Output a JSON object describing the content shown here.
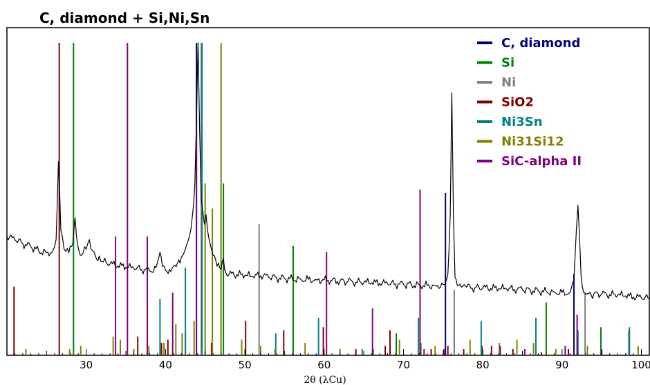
{
  "chart_data": {
    "type": "line",
    "title": "C, diamond + Si,Ni,Sn",
    "xlabel": "2θ (λCu)",
    "ylabel": "",
    "xlim": [
      20,
      101
    ],
    "ylim": [
      0,
      100
    ],
    "xticks": [
      30,
      40,
      50,
      60,
      70,
      80,
      90,
      100
    ],
    "grid": false,
    "legend_position": "top-right",
    "pattern": {
      "name": "",
      "color": "#000000",
      "x": [
        20.0,
        21.0,
        22.0,
        23.0,
        24.0,
        25.0,
        25.8,
        26.2,
        26.5,
        26.8,
        27.2,
        27.8,
        28.3,
        28.6,
        28.9,
        29.4,
        30.0,
        30.4,
        30.8,
        31.3,
        32.0,
        33.0,
        34.0,
        35.0,
        36.0,
        37.0,
        38.0,
        38.8,
        39.3,
        39.6,
        40.0,
        40.5,
        41.0,
        41.5,
        42.0,
        42.5,
        43.0,
        43.4,
        43.7,
        43.9,
        44.1,
        44.3,
        44.5,
        44.7,
        44.9,
        45.1,
        45.3,
        45.6,
        46.0,
        46.5,
        47.0,
        47.3,
        47.6,
        48.0,
        49.0,
        50.0,
        51.0,
        52.0,
        53.0,
        54.0,
        55.0,
        56.0,
        57.0,
        58.0,
        59.0,
        60.0,
        61.0,
        62.0,
        63.0,
        64.0,
        65.0,
        66.0,
        67.0,
        68.0,
        69.0,
        70.0,
        71.0,
        72.0,
        73.0,
        74.0,
        75.0,
        75.6,
        75.9,
        76.1,
        76.3,
        76.5,
        76.8,
        77.3,
        78.0,
        79.0,
        80.0,
        81.0,
        82.0,
        83.0,
        84.0,
        85.0,
        86.0,
        87.0,
        88.0,
        89.0,
        90.0,
        91.0,
        91.5,
        91.8,
        92.0,
        92.2,
        92.4,
        92.7,
        93.2,
        94.0,
        95.0,
        96.0,
        97.0,
        98.0,
        99.0,
        100.0,
        101.0
      ],
      "y": [
        38.0,
        37.0,
        35.8,
        34.8,
        33.5,
        32.8,
        33.5,
        37.0,
        62.0,
        40.0,
        34.0,
        32.8,
        35.5,
        44.0,
        35.5,
        32.0,
        34.0,
        37.0,
        33.5,
        30.8,
        30.0,
        29.2,
        28.6,
        28.2,
        27.8,
        27.5,
        27.0,
        28.0,
        33.0,
        28.5,
        27.2,
        27.5,
        28.5,
        29.5,
        31.5,
        34.0,
        38.0,
        45.0,
        55.0,
        75.0,
        100.0,
        72.0,
        50.0,
        46.0,
        42.0,
        45.0,
        40.0,
        36.0,
        32.0,
        28.5,
        27.5,
        31.0,
        26.5,
        25.8,
        25.8,
        25.5,
        25.2,
        25.5,
        25.0,
        24.8,
        24.6,
        24.5,
        24.4,
        24.3,
        24.2,
        24.2,
        24.0,
        23.8,
        23.6,
        23.4,
        23.2,
        23.2,
        23.0,
        22.9,
        22.8,
        22.7,
        22.6,
        22.5,
        22.4,
        22.3,
        22.6,
        26.0,
        45.0,
        84.0,
        45.0,
        25.0,
        22.3,
        21.8,
        21.8,
        21.6,
        21.5,
        21.4,
        21.3,
        21.2,
        21.1,
        21.0,
        20.8,
        20.6,
        20.4,
        20.3,
        20.1,
        20.0,
        24.0,
        40.0,
        48.0,
        38.0,
        25.0,
        20.2,
        19.8,
        19.6,
        19.5,
        19.4,
        19.2,
        19.0,
        18.6,
        18.4,
        18.2
      ]
    },
    "phases": [
      {
        "name": "C, diamond",
        "color": "#000080",
        "lines": [
          [
            43.9,
            100
          ],
          [
            75.3,
            52
          ],
          [
            91.5,
            26
          ]
        ]
      },
      {
        "name": "Si",
        "color": "#008000",
        "lines": [
          [
            28.4,
            100
          ],
          [
            47.3,
            55
          ],
          [
            56.1,
            35
          ],
          [
            69.1,
            7
          ],
          [
            76.4,
            11
          ],
          [
            88.0,
            17
          ],
          [
            94.9,
            9
          ]
        ]
      },
      {
        "name": "Ni",
        "color": "#808080",
        "lines": [
          [
            44.5,
            100
          ],
          [
            51.8,
            42
          ],
          [
            76.4,
            21
          ],
          [
            92.9,
            20
          ],
          [
            98.4,
            8
          ]
        ]
      },
      {
        "name": "SiO2",
        "color": "#800000",
        "lines": [
          [
            20.9,
            22
          ],
          [
            26.6,
            100
          ],
          [
            36.5,
            6
          ],
          [
            39.5,
            4
          ],
          [
            40.3,
            5
          ],
          [
            42.5,
            7
          ],
          [
            45.8,
            4
          ],
          [
            50.1,
            11
          ],
          [
            54.9,
            8
          ],
          [
            59.9,
            9
          ],
          [
            64.0,
            2
          ],
          [
            67.7,
            3
          ],
          [
            68.3,
            8
          ],
          [
            73.5,
            2
          ],
          [
            75.6,
            3
          ],
          [
            77.6,
            2
          ],
          [
            79.9,
            3
          ],
          [
            81.1,
            3
          ],
          [
            83.8,
            2
          ],
          [
            87.4,
            1
          ],
          [
            90.8,
            2
          ]
        ]
      },
      {
        "name": "Ni3Sn",
        "color": "#008080",
        "lines": [
          [
            39.3,
            18
          ],
          [
            42.5,
            28
          ],
          [
            44.6,
            100
          ],
          [
            53.9,
            7
          ],
          [
            59.3,
            12
          ],
          [
            64.8,
            2
          ],
          [
            71.9,
            12
          ],
          [
            79.8,
            11
          ],
          [
            86.7,
            12
          ],
          [
            92.0,
            8
          ],
          [
            98.5,
            9
          ]
        ]
      },
      {
        "name": "Ni31Si12",
        "color": "#808000",
        "lines": [
          [
            22.4,
            2
          ],
          [
            27.9,
            2
          ],
          [
            29.3,
            3
          ],
          [
            33.4,
            6
          ],
          [
            34.3,
            5
          ],
          [
            36.0,
            2
          ],
          [
            37.9,
            3
          ],
          [
            39.8,
            4
          ],
          [
            41.3,
            10
          ],
          [
            42.1,
            7
          ],
          [
            43.6,
            11
          ],
          [
            45.0,
            55
          ],
          [
            45.9,
            47
          ],
          [
            47.0,
            100
          ],
          [
            49.6,
            5
          ],
          [
            52.0,
            3
          ],
          [
            53.8,
            2
          ],
          [
            57.6,
            4
          ],
          [
            62.0,
            2
          ],
          [
            66.2,
            2
          ],
          [
            69.5,
            5
          ],
          [
            72.2,
            4
          ],
          [
            74.0,
            3
          ],
          [
            78.4,
            5
          ],
          [
            82.1,
            4
          ],
          [
            84.3,
            5
          ],
          [
            86.4,
            4
          ],
          [
            89.2,
            2
          ],
          [
            93.2,
            3
          ],
          [
            99.6,
            3
          ]
        ]
      },
      {
        "name": "SiC-alpha II",
        "color": "#800080",
        "lines": [
          [
            33.7,
            38
          ],
          [
            35.2,
            100
          ],
          [
            37.7,
            38
          ],
          [
            40.9,
            20
          ],
          [
            43.9,
            75
          ],
          [
            60.3,
            33
          ],
          [
            66.1,
            15
          ],
          [
            72.1,
            53
          ],
          [
            72.6,
            2
          ],
          [
            75.1,
            2
          ],
          [
            82.2,
            3
          ],
          [
            85.3,
            2
          ],
          [
            90.4,
            3
          ],
          [
            91.9,
            13
          ],
          [
            95.0,
            2
          ]
        ]
      }
    ]
  }
}
